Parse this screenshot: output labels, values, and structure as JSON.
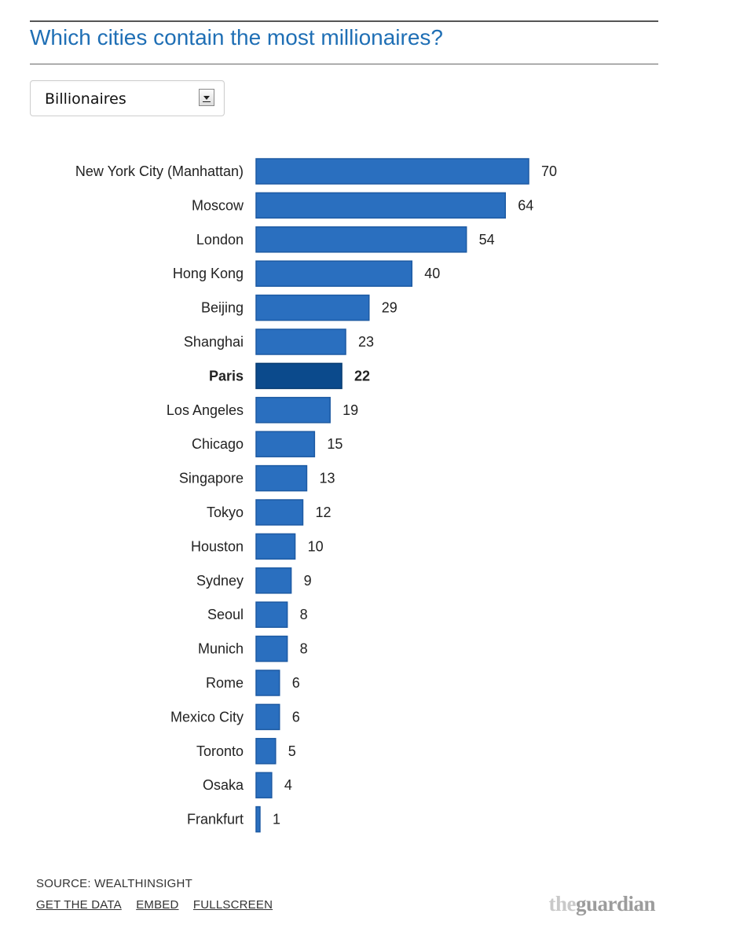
{
  "title": "Which cities contain the most millionaires?",
  "dropdown": {
    "selected": "Billionaires"
  },
  "colors": {
    "bar": "#2a6fbf",
    "bar_border": "#1d5aa3",
    "bar_highlight": "#0b4a8c",
    "title": "#1f6fb5"
  },
  "chart_data": {
    "type": "bar",
    "orientation": "horizontal",
    "categories": [
      "New York City (Manhattan)",
      "Moscow",
      "London",
      "Hong Kong",
      "Beijing",
      "Shanghai",
      "Paris",
      "Los Angeles",
      "Chicago",
      "Singapore",
      "Tokyo",
      "Houston",
      "Sydney",
      "Seoul",
      "Munich",
      "Rome",
      "Mexico City",
      "Toronto",
      "Osaka",
      "Frankfurt"
    ],
    "values": [
      70,
      64,
      54,
      40,
      29,
      23,
      22,
      19,
      15,
      13,
      12,
      10,
      9,
      8,
      8,
      6,
      6,
      5,
      4,
      1
    ],
    "highlight": "Paris",
    "xlim": [
      0,
      70
    ],
    "grid": false,
    "data_labels": true
  },
  "footer": {
    "source": "SOURCE: WEALTHINSIGHT",
    "links": [
      "GET THE DATA",
      "EMBED",
      "FULLSCREEN"
    ],
    "logo_the": "the",
    "logo_guardian": "guardian"
  }
}
